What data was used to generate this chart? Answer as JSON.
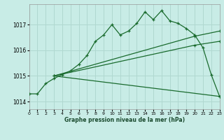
{
  "xlabel": "Graphe pression niveau de la mer (hPa)",
  "bg_color": "#c8ece6",
  "grid_color": "#b0d8d0",
  "line_color": "#1a6b2e",
  "xlim": [
    0,
    23
  ],
  "ylim": [
    1013.7,
    1017.8
  ],
  "yticks": [
    1014,
    1015,
    1016,
    1017
  ],
  "xticks": [
    0,
    1,
    2,
    3,
    4,
    5,
    6,
    7,
    8,
    9,
    10,
    11,
    12,
    13,
    14,
    15,
    16,
    17,
    18,
    19,
    20,
    21,
    22,
    23
  ],
  "series_main": {
    "x": [
      0,
      1,
      2,
      3,
      4,
      5,
      6,
      7,
      8,
      9,
      10,
      11,
      12,
      13,
      14,
      15,
      16,
      17,
      18,
      19,
      20,
      21,
      22,
      23
    ],
    "y": [
      1014.3,
      1014.3,
      1014.7,
      1014.9,
      1015.05,
      1015.2,
      1015.45,
      1015.8,
      1016.35,
      1016.6,
      1017.0,
      1016.6,
      1016.75,
      1017.05,
      1017.5,
      1017.2,
      1017.55,
      1017.15,
      1017.05,
      1016.85,
      1016.6,
      1016.1,
      1015.05,
      1014.2
    ]
  },
  "series_max": {
    "x": [
      3,
      20,
      23
    ],
    "y": [
      1015.0,
      1016.55,
      1016.75
    ]
  },
  "series_mean": {
    "x": [
      3,
      20,
      23
    ],
    "y": [
      1015.0,
      1016.2,
      1016.35
    ]
  },
  "series_min": {
    "x": [
      3,
      23
    ],
    "y": [
      1015.0,
      1014.2
    ]
  }
}
